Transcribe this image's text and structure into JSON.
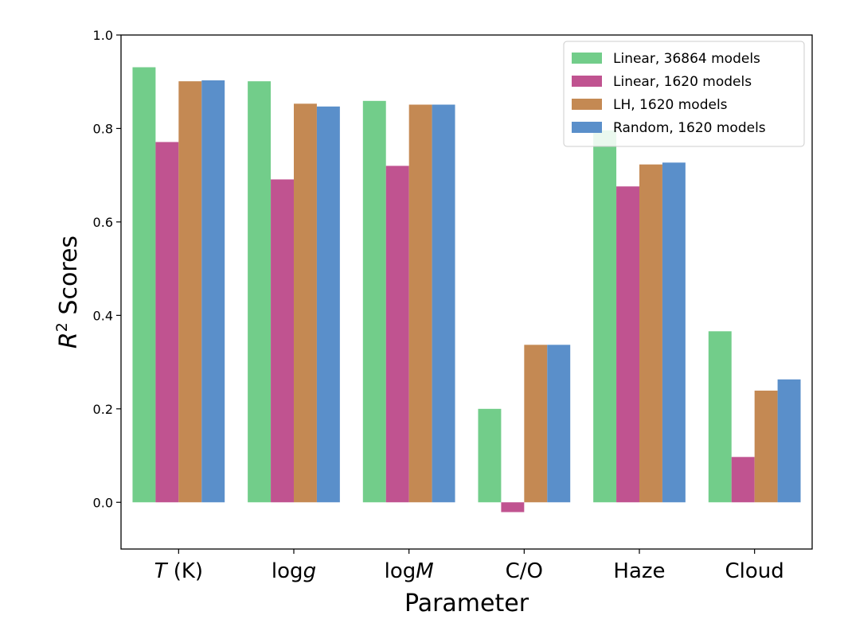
{
  "chart_data": {
    "type": "bar",
    "title": "",
    "xlabel": "Parameter",
    "ylabel": "R² Scores",
    "ylabel_parts": {
      "var": "R",
      "sup": "2",
      "rest": " Scores"
    },
    "ylim": [
      -0.1,
      1.0
    ],
    "yticks": [
      "0.0",
      "0.2",
      "0.4",
      "0.6",
      "0.8",
      "1.0"
    ],
    "ytick_values": [
      0.0,
      0.2,
      0.4,
      0.6,
      0.8,
      1.0
    ],
    "grid": false,
    "legend_position": "top-right",
    "categories": [
      {
        "name": "T (K)",
        "parts": [
          {
            "t": "T",
            "i": true
          },
          {
            "t": " (K)",
            "i": false
          }
        ]
      },
      {
        "name": "logg",
        "parts": [
          {
            "t": "log",
            "i": false
          },
          {
            "t": "g",
            "i": true
          }
        ]
      },
      {
        "name": "logM",
        "parts": [
          {
            "t": "log",
            "i": false
          },
          {
            "t": "M",
            "i": true
          }
        ]
      },
      {
        "name": "C/O",
        "parts": [
          {
            "t": "C/O",
            "i": false
          }
        ]
      },
      {
        "name": "Haze",
        "parts": [
          {
            "t": "Haze",
            "i": false
          }
        ]
      },
      {
        "name": "Cloud",
        "parts": [
          {
            "t": "Cloud",
            "i": false
          }
        ]
      }
    ],
    "series": [
      {
        "name": "Linear, 36864 models",
        "color": "#72cd8a",
        "values": [
          0.931,
          0.901,
          0.859,
          0.2,
          0.796,
          0.366
        ]
      },
      {
        "name": "Linear, 1620 models",
        "color": "#c05390",
        "values": [
          0.771,
          0.691,
          0.72,
          -0.021,
          0.676,
          0.097
        ]
      },
      {
        "name": "LH, 1620 models",
        "color": "#c48953",
        "values": [
          0.901,
          0.853,
          0.851,
          0.337,
          0.723,
          0.239
        ]
      },
      {
        "name": "Random, 1620 models",
        "color": "#5a8fca",
        "values": [
          0.903,
          0.847,
          0.851,
          0.337,
          0.727,
          0.263
        ]
      }
    ]
  }
}
